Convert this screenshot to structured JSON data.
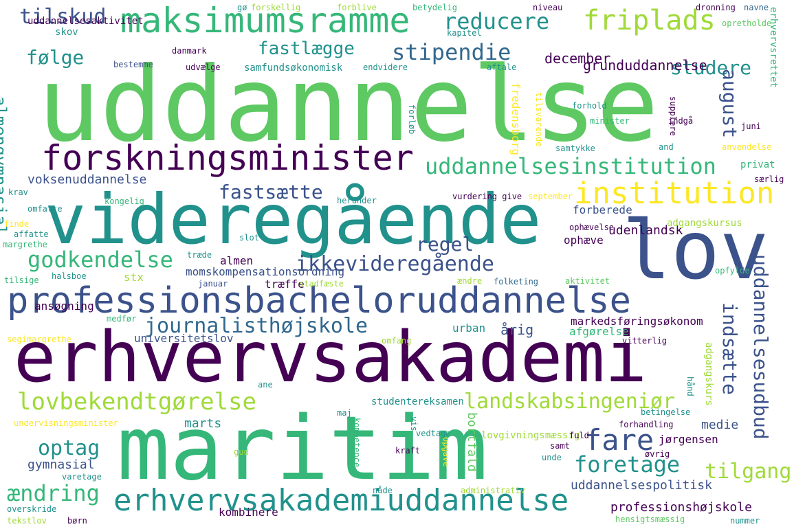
{
  "palette": {
    "dark_purple": "#440154",
    "indigo": "#3b528b",
    "blue": "#31688e",
    "teal": "#21918c",
    "green": "#35b779",
    "light_green": "#5ec962",
    "lime": "#a0da39",
    "yellow": "#fde725",
    "background": "#ffffff"
  },
  "words": [
    {
      "text": "uddannelse",
      "color": "light_green"
    },
    {
      "text": "videregående",
      "color": "teal"
    },
    {
      "text": "erhvervsakademi",
      "color": "dark_purple"
    },
    {
      "text": "maritim",
      "color": "green"
    },
    {
      "text": "lov",
      "color": "indigo"
    },
    {
      "text": "professionsbacheloruddannelse",
      "color": "indigo"
    },
    {
      "text": "forskningsminister",
      "color": "dark_purple"
    },
    {
      "text": "maksimumsramme",
      "color": "green"
    },
    {
      "text": "erhvervsakademiuddannelse",
      "color": "teal"
    },
    {
      "text": "institution",
      "color": "yellow"
    },
    {
      "text": "uddannelsesinstitution",
      "color": "green"
    },
    {
      "text": "journalisthøjskole",
      "color": "blue"
    },
    {
      "text": "ikkevideregående",
      "color": "indigo"
    },
    {
      "text": "lovbekendtgørelse",
      "color": "lime"
    },
    {
      "text": "landskabsingeniør",
      "color": "lime"
    },
    {
      "text": "godkendelse",
      "color": "green"
    },
    {
      "text": "fripl ads",
      "color": "lime"
    },
    {
      "text": "stipendie",
      "color": "blue"
    },
    {
      "text": "fastlægge",
      "color": "teal"
    },
    {
      "text": "reducere",
      "color": "teal"
    },
    {
      "text": "tilskud",
      "color": "indigo"
    },
    {
      "text": "følge",
      "color": "teal"
    },
    {
      "text": "studere",
      "color": "teal"
    },
    {
      "text": "fare",
      "color": "indigo"
    },
    {
      "text": "foretage",
      "color": "teal"
    },
    {
      "text": "tilgang",
      "color": "lime"
    },
    {
      "text": "ændring",
      "color": "green"
    },
    {
      "text": "optag",
      "color": "teal"
    },
    {
      "text": "regel",
      "color": "indigo"
    },
    {
      "text": "fastsætte",
      "color": "indigo"
    },
    {
      "text": "indsætte",
      "color": "indigo"
    },
    {
      "text": "uddannelsesudbud",
      "color": "indigo"
    },
    {
      "text": "almengymnasial",
      "color": "teal"
    },
    {
      "text": "august",
      "color": "indigo"
    },
    {
      "text": "december",
      "color": "dark_purple"
    },
    {
      "text": "grunduddannelse",
      "color": "dark_purple"
    },
    {
      "text": "voksenuddannelse",
      "color": "indigo"
    },
    {
      "text": "udenlandsk",
      "color": "dark_purple"
    },
    {
      "text": "forberede",
      "color": "indigo"
    },
    {
      "text": "adgangskursus",
      "color": "lime"
    },
    {
      "text": "ophæve",
      "color": "dark_purple"
    },
    {
      "text": "almen",
      "color": "dark_purple"
    },
    {
      "text": "momskompensationsordning",
      "color": "indigo"
    },
    {
      "text": "træffe",
      "color": "dark_purple"
    },
    {
      "text": "stx",
      "color": "lime"
    },
    {
      "text": "ansøgning",
      "color": "dark_purple"
    },
    {
      "text": "universitetslov",
      "color": "indigo"
    },
    {
      "text": "urban",
      "color": "teal"
    },
    {
      "text": "årig",
      "color": "indigo"
    },
    {
      "text": "markedsføringsøkonom",
      "color": "dark_purple"
    },
    {
      "text": "afgørelse",
      "color": "green"
    },
    {
      "text": "medie",
      "color": "indigo"
    },
    {
      "text": "marts",
      "color": "teal"
    },
    {
      "text": "gymnasial",
      "color": "indigo"
    },
    {
      "text": "uddannelsespolitisk",
      "color": "indigo"
    },
    {
      "text": "professionshøjskole",
      "color": "dark_purple"
    },
    {
      "text": "kombinere",
      "color": "dark_purple"
    },
    {
      "text": "jørgensen",
      "color": "dark_purple"
    },
    {
      "text": "lovgivningsmæssig",
      "color": "lime"
    },
    {
      "text": "studentereksamen",
      "color": "teal"
    },
    {
      "text": "bortfald",
      "color": "light_green"
    },
    {
      "text": "skov",
      "color": "teal"
    },
    {
      "text": "uddannelsesaktivitet",
      "color": "dark_purple"
    },
    {
      "text": "samfundsøkonomisk",
      "color": "teal"
    },
    {
      "text": "gø",
      "color": "teal"
    },
    {
      "text": "forskellig",
      "color": "lime"
    },
    {
      "text": "forblive",
      "color": "lime"
    },
    {
      "text": "betydelig",
      "color": "green"
    },
    {
      "text": "niveau",
      "color": "dark_purple"
    },
    {
      "text": "dronning",
      "color": "dark_purple"
    },
    {
      "text": "navne",
      "color": "blue"
    },
    {
      "text": "kapitel",
      "color": "teal"
    },
    {
      "text": "opretholde",
      "color": "light_green"
    },
    {
      "text": "erhvervsrettet",
      "color": "green"
    },
    {
      "text": "danmark",
      "color": "dark_purple"
    },
    {
      "text": "bestemme",
      "color": "indigo"
    },
    {
      "text": "udvælge",
      "color": "dark_purple"
    },
    {
      "text": "endvidere",
      "color": "teal"
    },
    {
      "text": "aftale",
      "color": "teal"
    },
    {
      "text": "forløb",
      "color": "teal"
    },
    {
      "text": "fredensborg",
      "color": "yellow"
    },
    {
      "text": "tilsvarende",
      "color": "yellow"
    },
    {
      "text": "forhold",
      "color": "teal"
    },
    {
      "text": "minister",
      "color": "green"
    },
    {
      "text": "indgå",
      "color": "dark_purple"
    },
    {
      "text": "supplere",
      "color": "dark_purple"
    },
    {
      "text": "juni",
      "color": "dark_purple"
    },
    {
      "text": "samtykke",
      "color": "teal"
    },
    {
      "text": "and",
      "color": "teal"
    },
    {
      "text": "anvendelse",
      "color": "yellow"
    },
    {
      "text": "privat",
      "color": "green"
    },
    {
      "text": "særlig",
      "color": "dark_purple"
    },
    {
      "text": "krav",
      "color": "teal"
    },
    {
      "text": "omfatte",
      "color": "teal"
    },
    {
      "text": "herunder",
      "color": "teal"
    },
    {
      "text": "vurdering give",
      "color": "dark_purple"
    },
    {
      "text": "kongelig",
      "color": "green"
    },
    {
      "text": "september",
      "color": "yellow"
    },
    {
      "text": "finde",
      "color": "yellow"
    },
    {
      "text": "affatte",
      "color": "teal"
    },
    {
      "text": "margrethe",
      "color": "green"
    },
    {
      "text": "slot",
      "color": "teal"
    },
    {
      "text": "ophævelse",
      "color": "dark_purple"
    },
    {
      "text": "opfylde",
      "color": "green"
    },
    {
      "text": "træde",
      "color": "teal"
    },
    {
      "text": "halsboe",
      "color": "teal"
    },
    {
      "text": "tilsige",
      "color": "green"
    },
    {
      "text": "januar",
      "color": "indigo"
    },
    {
      "text": "stadfæste",
      "color": "lime"
    },
    {
      "text": "ændre",
      "color": "lime"
    },
    {
      "text": "folketing",
      "color": "blue"
    },
    {
      "text": "aktivitet",
      "color": "light_green"
    },
    {
      "text": "medfør",
      "color": "green"
    },
    {
      "text": "segimargrethe",
      "color": "yellow"
    },
    {
      "text": "omfang",
      "color": "lime"
    },
    {
      "text": "vitterlig",
      "color": "dark_purple"
    },
    {
      "text": "ane",
      "color": "teal"
    },
    {
      "text": "maj",
      "color": "teal"
    },
    {
      "text": "undervisningsminister",
      "color": "yellow"
    },
    {
      "text": "kompetence",
      "color": "green"
    },
    {
      "text": "vis",
      "color": "teal"
    },
    {
      "text": "vedtage",
      "color": "teal"
    },
    {
      "text": "kraft",
      "color": "dark_purple"
    },
    {
      "text": "opgave",
      "color": "yellow"
    },
    {
      "text": "unde",
      "color": "teal"
    },
    {
      "text": "samt",
      "color": "dark_purple"
    },
    {
      "text": "gud",
      "color": "lime"
    },
    {
      "text": "øvrig",
      "color": "dark_purple"
    },
    {
      "text": "varetage",
      "color": "teal"
    },
    {
      "text": "nåde",
      "color": "teal"
    },
    {
      "text": "administrativ",
      "color": "lime"
    },
    {
      "text": "overskride",
      "color": "teal"
    },
    {
      "text": "tekstlov",
      "color": "lime"
    },
    {
      "text": "børn",
      "color": "dark_purple"
    },
    {
      "text": "hensigtsmæssig",
      "color": "light_green"
    },
    {
      "text": "nummer",
      "color": "teal"
    },
    {
      "text": "fuld",
      "color": "dark_purple"
    },
    {
      "text": "forhandling",
      "color": "dark_purple"
    },
    {
      "text": "betingelse",
      "color": "teal"
    },
    {
      "text": "hånd",
      "color": "teal"
    },
    {
      "text": "adgangskurs",
      "color": "lime"
    }
  ]
}
